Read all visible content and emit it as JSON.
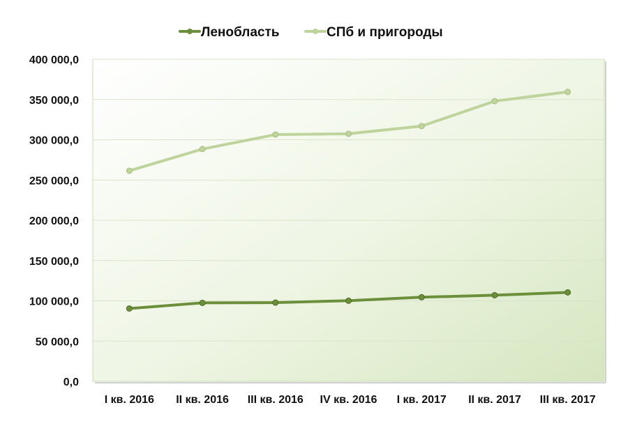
{
  "chart_data": {
    "type": "line",
    "title": "",
    "xlabel": "",
    "ylabel": "",
    "categories": [
      "I кв. 2016",
      "II кв. 2016",
      "III кв. 2016",
      "IV кв. 2016",
      "I кв. 2017",
      "II кв. 2017",
      "III кв. 2017"
    ],
    "series": [
      {
        "name": "Ленобласть",
        "color": "#6b8f3a",
        "values": [
          90500,
          97500,
          97800,
          100200,
          104500,
          107000,
          110500
        ]
      },
      {
        "name": "СПб и пригороды",
        "color": "#bfd39c",
        "values": [
          261500,
          288500,
          306500,
          307500,
          317000,
          348000,
          359500
        ]
      }
    ],
    "ylim": [
      0,
      400000
    ],
    "y_ticks": [
      0,
      50000,
      100000,
      150000,
      200000,
      250000,
      300000,
      350000,
      400000
    ],
    "y_tick_labels": [
      "0,0",
      "50 000,0",
      "100 000,0",
      "150 000,0",
      "200 000,0",
      "250 000,0",
      "300 000,0",
      "350 000,0",
      "400 000,0"
    ],
    "grid": true,
    "legend_position": "top",
    "plot_background": "gradient light green"
  }
}
